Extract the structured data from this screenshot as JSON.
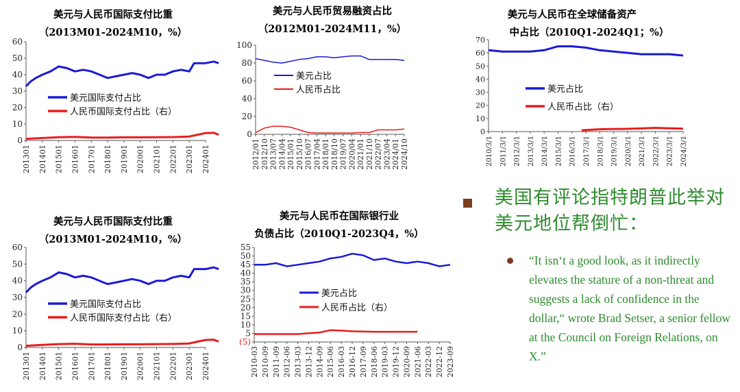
{
  "headline": "美国有评论指特朗普此举对美元地位帮倒忙：",
  "quote": "“It isn‘t a good look, as it indirectly elevates the stature of a non-threat and suggests a lack of confidence in the dollar,“ wrote Brad Setser, a senior fellow at the Council on Foreign Relations, on X.”",
  "colors": {
    "usd": "#1a1ad6",
    "rmb": "#e81c1c",
    "green": "#2e8b2e"
  },
  "chart_data": [
    {
      "type": "line",
      "title": "美元与人民币国际支付比重",
      "subtitle": "（2013M01-2024M10，%）",
      "ylim": [
        0,
        60
      ],
      "yticks": [
        "0",
        "10",
        "20",
        "30",
        "40",
        "50",
        "60"
      ],
      "xticks": [
        "201301",
        "201401",
        "201501",
        "201601",
        "201701",
        "201801",
        "201901",
        "202001",
        "202101",
        "202201",
        "202301",
        "202401"
      ],
      "series": [
        {
          "name": "美元国际支付占比",
          "color": "usd",
          "x": [
            0,
            0.3,
            0.6,
            1,
            1.5,
            2,
            2.5,
            3,
            3.5,
            4,
            4.5,
            5,
            5.5,
            6,
            6.5,
            7,
            7.5,
            8,
            8.5,
            9,
            9.5,
            10,
            10.3,
            10.6,
            11,
            11.5,
            11.8
          ],
          "values": [
            33,
            36,
            38,
            40,
            42,
            45,
            44,
            42,
            43,
            42,
            40,
            38,
            39,
            40,
            41,
            40,
            38,
            40,
            40,
            42,
            43,
            42,
            47,
            47,
            47,
            48,
            47
          ]
        },
        {
          "name": "人民币国际支付占比（右）",
          "color": "rmb",
          "x": [
            0,
            1,
            2,
            3,
            4,
            5,
            6,
            7,
            8,
            9,
            10,
            10.5,
            11,
            11.5,
            11.8
          ],
          "values": [
            1,
            1.5,
            2,
            2.2,
            1.8,
            1.8,
            1.9,
            1.9,
            2,
            2.1,
            2.4,
            3.5,
            4.5,
            4.7,
            3.5
          ]
        }
      ]
    },
    {
      "type": "line",
      "title": "美元与人民币贸易融资占比",
      "subtitle": "（2012M01-2024M11，%）",
      "ylim": [
        0,
        100
      ],
      "yticks": [
        "0",
        "20",
        "40",
        "60",
        "80",
        "100"
      ],
      "xticks": [
        "2012/01",
        "2012/10",
        "2013/07",
        "2014/04",
        "2015/01",
        "2015/10",
        "2016/07",
        "2017/04",
        "2018/01",
        "2018/10",
        "2019/07",
        "2020/04",
        "2021/01",
        "2021/10",
        "2022/07",
        "2023/04",
        "2024/01",
        "2024/10"
      ],
      "series": [
        {
          "name": "美元占比",
          "color": "usd",
          "x": [
            0,
            1,
            2,
            3,
            4,
            5,
            6,
            7,
            8,
            9,
            10,
            11,
            12,
            12.5,
            13,
            14,
            15,
            16,
            17
          ],
          "values": [
            85,
            83,
            81,
            80,
            82,
            84,
            85,
            87,
            87,
            86,
            87,
            88,
            88,
            86,
            84,
            84,
            84,
            84,
            83
          ]
        },
        {
          "name": "人民币占比",
          "color": "rmb",
          "x": [
            0,
            1,
            2,
            3,
            4,
            5,
            6,
            7,
            8,
            9,
            10,
            11,
            12,
            13,
            14,
            15,
            16,
            17
          ],
          "values": [
            2,
            7,
            9,
            9,
            8,
            5,
            2,
            1.5,
            1.5,
            1.5,
            1.5,
            1.5,
            2,
            2,
            5,
            5,
            5,
            6
          ]
        }
      ]
    },
    {
      "type": "line",
      "title": "美元与人民币在全球储备资产",
      "subtitle": "中占比（2010Q1-2024Q1；%）",
      "ylim": [
        0,
        70
      ],
      "yticks": [
        "0",
        "10",
        "20",
        "30",
        "40",
        "50",
        "60",
        "70"
      ],
      "xticks": [
        "2010/3/1",
        "2011/3/1",
        "2012/3/1",
        "2013/3/1",
        "2014/3/1",
        "2015/3/1",
        "2016/3/1",
        "2017/3/1",
        "2018/3/1",
        "2019/3/1",
        "2020/3/1",
        "2021/3/1",
        "2022/3/1",
        "2023/3/1",
        "2024/3/1"
      ],
      "series": [
        {
          "name": "美元占比",
          "color": "usd",
          "x": [
            0,
            1,
            2,
            3,
            4,
            5,
            6,
            7,
            8,
            9,
            10,
            11,
            12,
            13,
            14
          ],
          "values": [
            62,
            61,
            61,
            61,
            62,
            65,
            65,
            64,
            62,
            61,
            60,
            59,
            59,
            59,
            58
          ]
        },
        {
          "name": "人民币占比（右）",
          "color": "rmb",
          "x": [
            6.7,
            7,
            8,
            9,
            10,
            11,
            12,
            13,
            14
          ],
          "values": [
            1,
            1.2,
            1.8,
            2,
            2.1,
            2.4,
            2.8,
            2.5,
            2.2
          ]
        }
      ]
    },
    {
      "type": "line",
      "title": "美元与人民币国际支付比重",
      "subtitle": "（2013M01-2024M10，%）",
      "ylim": [
        0,
        60
      ],
      "yticks": [
        "0",
        "10",
        "20",
        "30",
        "40",
        "50",
        "60"
      ],
      "xticks": [
        "201301",
        "201401",
        "201501",
        "201601",
        "201701",
        "201801",
        "201901",
        "202001",
        "202101",
        "202201",
        "202301",
        "202401"
      ],
      "series": [
        {
          "name": "美元国际支付占比",
          "color": "usd",
          "x": [
            0,
            0.3,
            0.6,
            1,
            1.5,
            2,
            2.5,
            3,
            3.5,
            4,
            4.5,
            5,
            5.5,
            6,
            6.5,
            7,
            7.5,
            8,
            8.5,
            9,
            9.5,
            10,
            10.3,
            10.6,
            11,
            11.5,
            11.8
          ],
          "values": [
            33,
            36,
            38,
            40,
            42,
            45,
            44,
            42,
            43,
            42,
            40,
            38,
            39,
            40,
            41,
            40,
            38,
            40,
            40,
            42,
            43,
            42,
            47,
            47,
            47,
            48,
            47
          ]
        },
        {
          "name": "人民币国际支付占比（右）",
          "color": "rmb",
          "x": [
            0,
            1,
            2,
            3,
            4,
            5,
            6,
            7,
            8,
            9,
            10,
            10.5,
            11,
            11.5,
            11.8
          ],
          "values": [
            1,
            1.5,
            2,
            2.2,
            1.8,
            1.8,
            1.9,
            1.9,
            2,
            2.1,
            2.4,
            3.5,
            4.5,
            4.7,
            3.5
          ]
        }
      ]
    },
    {
      "type": "line",
      "title": "美元与人民币在国际银行业",
      "subtitle": "负债占比（2010Q1-2023Q4，%）",
      "ylim": [
        -5,
        55
      ],
      "yticks": [
        "(5)",
        "5",
        "10",
        "15",
        "20",
        "25",
        "30",
        "35",
        "40",
        "45",
        "50",
        "55"
      ],
      "xticks": [
        "2010-03",
        "2010-09",
        "2011-09",
        "2012-06",
        "2013-03",
        "2013-12",
        "2014-09",
        "2015-06",
        "2016-03",
        "2016-12",
        "2017-09",
        "2018-06",
        "2019-03",
        "2019-12",
        "2020-09",
        "2021-06",
        "2022-03",
        "2022-12",
        "2023-09"
      ],
      "series": [
        {
          "name": "美元占比",
          "color": "usd",
          "x": [
            0,
            1,
            2,
            3,
            4,
            5,
            6,
            7,
            8,
            9,
            10,
            11,
            12,
            13,
            14,
            15,
            16,
            17,
            18
          ],
          "values": [
            44,
            44,
            45,
            43,
            44,
            45,
            46,
            48,
            49,
            51,
            50,
            47,
            48,
            46,
            45,
            46,
            45,
            43,
            44
          ]
        },
        {
          "name": "人民币占比（右）",
          "color": "rmb",
          "x": [
            0,
            1,
            2,
            3,
            4,
            5,
            6,
            7,
            8,
            9,
            10,
            11,
            12,
            13,
            14,
            15
          ],
          "values": [
            0,
            0,
            0,
            0,
            0,
            0.5,
            1,
            2.5,
            2.2,
            1.8,
            1.6,
            1.5,
            1.5,
            1.5,
            1.5,
            1.5
          ]
        }
      ]
    }
  ]
}
